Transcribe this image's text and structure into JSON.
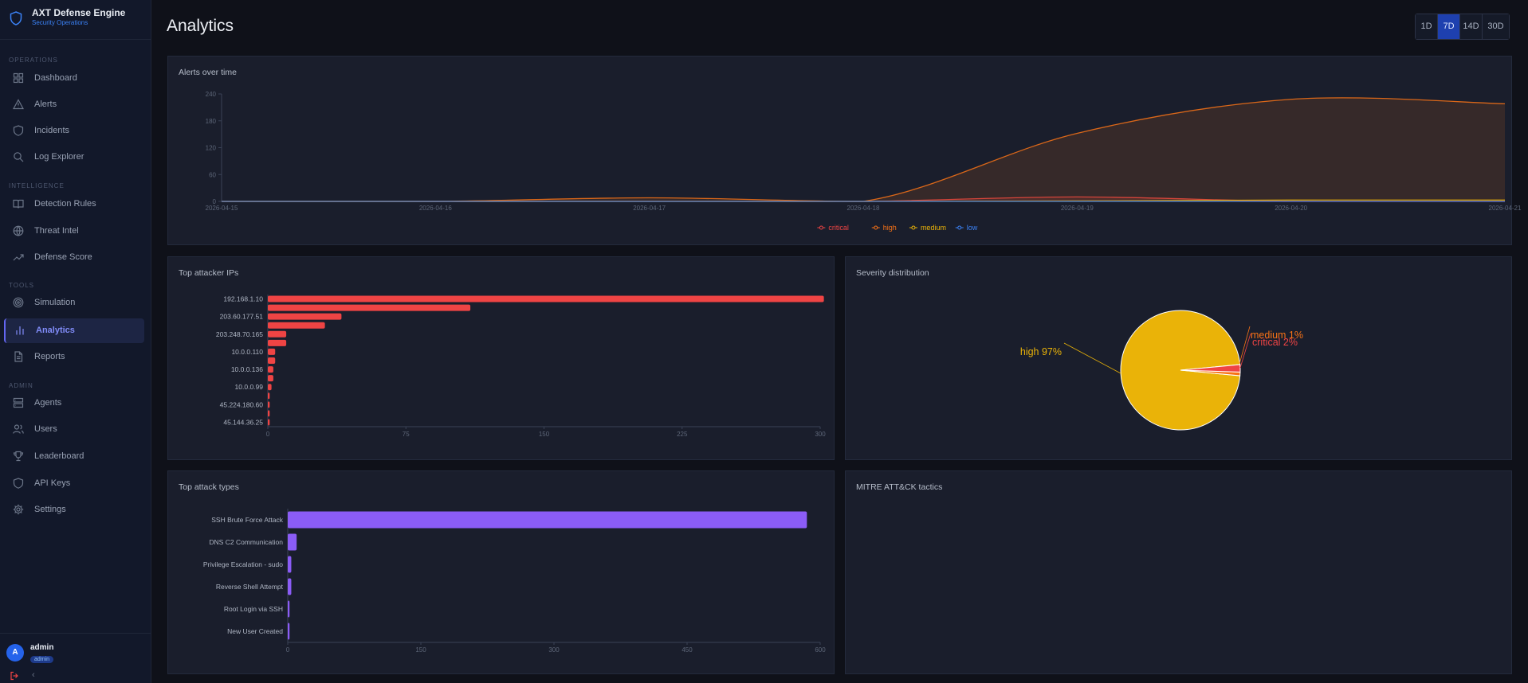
{
  "app": {
    "name": "AXT Defense Engine",
    "subtitle": "Security Operations",
    "accent": "#6366f1"
  },
  "sidebar": {
    "sections": [
      {
        "label": "OPERATIONS",
        "items": [
          {
            "label": "Dashboard",
            "icon": "dashboard-icon"
          },
          {
            "label": "Alerts",
            "icon": "alert-triangle-icon"
          },
          {
            "label": "Incidents",
            "icon": "shield-icon"
          },
          {
            "label": "Log Explorer",
            "icon": "search-icon"
          }
        ]
      },
      {
        "label": "INTELLIGENCE",
        "items": [
          {
            "label": "Detection Rules",
            "icon": "book-icon"
          },
          {
            "label": "Threat Intel",
            "icon": "globe-icon"
          },
          {
            "label": "Defense Score",
            "icon": "trending-up-icon"
          }
        ]
      },
      {
        "label": "TOOLS",
        "items": [
          {
            "label": "Simulation",
            "icon": "target-icon"
          },
          {
            "label": "Analytics",
            "icon": "bar-chart-icon",
            "active": true
          },
          {
            "label": "Reports",
            "icon": "file-icon"
          }
        ]
      },
      {
        "label": "ADMIN",
        "items": [
          {
            "label": "Agents",
            "icon": "server-icon"
          },
          {
            "label": "Users",
            "icon": "users-icon"
          },
          {
            "label": "Leaderboard",
            "icon": "trophy-icon"
          },
          {
            "label": "API Keys",
            "icon": "key-shield-icon"
          },
          {
            "label": "Settings",
            "icon": "gear-icon"
          }
        ]
      }
    ]
  },
  "user": {
    "initial": "A",
    "name": "admin",
    "role": "admin"
  },
  "header": {
    "title": "Analytics",
    "ranges": [
      "1D",
      "7D",
      "14D",
      "30D"
    ],
    "selected_range": "7D"
  },
  "chart_data": [
    {
      "id": "alerts_over_time",
      "type": "area",
      "title": "Alerts over time",
      "x": [
        "2026-04-15",
        "2026-04-16",
        "2026-04-17",
        "2026-04-18",
        "2026-04-19",
        "2026-04-20",
        "2026-04-21"
      ],
      "ylim": [
        0,
        240
      ],
      "yticks": [
        0,
        60,
        120,
        180,
        240
      ],
      "legend": "bottom",
      "series": [
        {
          "name": "critical",
          "color": "#ef4444",
          "values": [
            0,
            0,
            0,
            0,
            10,
            0,
            0
          ]
        },
        {
          "name": "high",
          "color": "#f97316",
          "values": [
            0,
            0,
            8,
            0,
            152,
            228,
            218
          ]
        },
        {
          "name": "medium",
          "color": "#eab308",
          "values": [
            0,
            0,
            0,
            0,
            1,
            3,
            3
          ]
        },
        {
          "name": "low",
          "color": "#3b82f6",
          "values": [
            0,
            0,
            0,
            0,
            0,
            0,
            0
          ]
        }
      ]
    },
    {
      "id": "top_attacker_ips",
      "type": "bar",
      "orientation": "horizontal",
      "title": "Top attacker IPs",
      "color": "#ef4444",
      "categories": [
        "192.168.1.10",
        "",
        "203.60.177.51",
        "",
        "203.248.70.165",
        "",
        "10.0.0.110",
        "",
        "10.0.0.136",
        "",
        "10.0.0.99",
        "",
        "45.224.180.60",
        "",
        "45.144.36.25"
      ],
      "values": [
        302,
        110,
        40,
        31,
        10,
        10,
        4,
        4,
        3,
        3,
        2,
        1,
        1,
        1,
        1
      ],
      "xlim": [
        0,
        300
      ],
      "xticks": [
        0,
        75,
        150,
        225,
        300
      ]
    },
    {
      "id": "severity_distribution",
      "type": "pie",
      "title": "Severity distribution",
      "slices": [
        {
          "label": "high",
          "pct": 97,
          "color": "#eab308"
        },
        {
          "label": "medium",
          "pct": 1,
          "color": "#f97316"
        },
        {
          "label": "critical",
          "pct": 2,
          "color": "#ef4444"
        }
      ],
      "slice_labels": [
        "high 97%",
        "medium 1%",
        "critical 2%"
      ]
    },
    {
      "id": "top_attack_types",
      "type": "bar",
      "orientation": "horizontal",
      "title": "Top attack types",
      "color": "#8b5cf6",
      "categories": [
        "SSH Brute Force Attack",
        "DNS C2 Communication",
        "Privilege Escalation - sudo",
        "Reverse Shell Attempt",
        "Root Login via SSH",
        "New User Created"
      ],
      "values": [
        585,
        10,
        4,
        4,
        2,
        2
      ],
      "xlim": [
        0,
        600
      ],
      "xticks": [
        0,
        150,
        300,
        450,
        600
      ]
    }
  ],
  "mitre": {
    "title": "MITRE ATT&CK tactics"
  }
}
